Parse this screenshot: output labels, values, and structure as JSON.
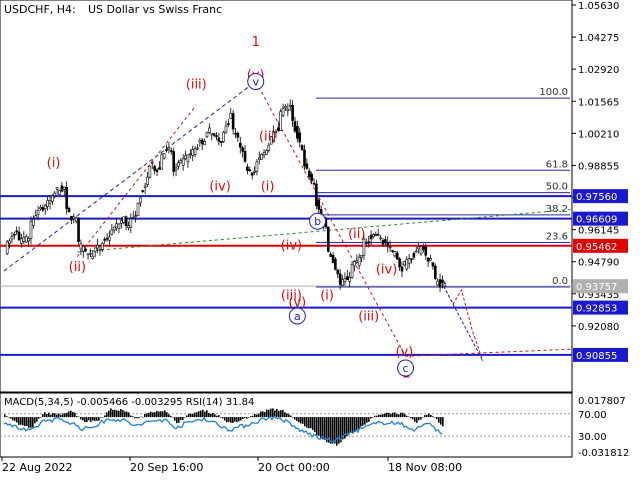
{
  "header": {
    "symbol": "USDCHF, H4:",
    "description": "US Dollar vs Swiss Franc"
  },
  "indicator_label": "MACD(5,34,5) -0.005466 -0.003295 RSI(14) 31.84",
  "colors": {
    "candle": "#000000",
    "level_blue": "#1a1acc",
    "level_red": "#e00000",
    "wave_red": "#d01010",
    "wave_blue": "#2020c0",
    "trend_green": "#2a8a2a",
    "fib_line": "#2a2aa0",
    "price_badge_blue": "#1a1acc",
    "price_badge_red": "#e00000",
    "current_badge": "#b0b0b0",
    "macd_hist": "#000000",
    "rsi_line": "#1e7fd6"
  },
  "chart_data": {
    "type": "candlestick",
    "y_range": [
      0.895,
      1.0563
    ],
    "y_ticks": [
      1.0563,
      1.04275,
      1.0292,
      1.01565,
      1.0021,
      0.98855,
      0.975,
      0.96145,
      0.9479,
      0.93435,
      0.9208
    ],
    "y_tick_labels": [
      "1.05630",
      "1.04275",
      "1.02920",
      "1.01565",
      "1.00210",
      "0.98855",
      "0.97500",
      "0.96145",
      "0.94790",
      "0.93435",
      "0.92080"
    ],
    "x_labels": [
      "22 Aug 2022",
      "20 Sep 16:00",
      "20 Oct 00:00",
      "18 Nov 08:00"
    ],
    "price_path": [
      [
        0.953,
        0.962
      ],
      [
        0.955,
        0.958
      ],
      [
        0.963,
        0.972
      ],
      [
        0.969,
        0.975
      ],
      [
        0.977,
        0.979
      ],
      [
        0.97,
        0.965
      ],
      [
        0.956,
        0.951
      ],
      [
        0.95,
        0.954
      ],
      [
        0.955,
        0.96
      ],
      [
        0.961,
        0.966
      ],
      [
        0.962,
        0.967
      ],
      [
        0.972,
        0.983
      ],
      [
        0.989,
        0.987
      ],
      [
        0.993,
        0.995
      ],
      [
        0.985,
        0.99
      ],
      [
        0.99,
        0.995
      ],
      [
        0.996,
        1.001
      ],
      [
        1.004,
        0.998
      ],
      [
        0.997,
        1.01
      ],
      [
        1.004,
        0.996
      ],
      [
        0.99,
        0.985
      ],
      [
        0.988,
        0.995
      ],
      [
        0.997,
        1.005
      ],
      [
        1.01,
        1.014
      ],
      [
        1.009,
        0.996
      ],
      [
        0.99,
        0.98
      ],
      [
        0.975,
        0.962
      ],
      [
        0.955,
        0.943
      ],
      [
        0.937,
        0.942
      ],
      [
        0.945,
        0.95
      ],
      [
        0.955,
        0.959
      ],
      [
        0.96,
        0.956
      ],
      [
        0.955,
        0.95
      ],
      [
        0.944,
        0.948
      ],
      [
        0.95,
        0.953
      ],
      [
        0.954,
        0.946
      ],
      [
        0.94,
        0.938
      ]
    ],
    "projection_path": [
      0.9376,
      0.93,
      0.936,
      0.919,
      0.906
    ],
    "levels": [
      {
        "price": 0.9756,
        "label": "0.97560",
        "style": "blue"
      },
      {
        "price": 0.96609,
        "label": "0.96609",
        "style": "blue"
      },
      {
        "price": 0.95462,
        "label": "0.95462",
        "style": "red"
      },
      {
        "price": 0.92853,
        "label": "0.92853",
        "style": "blue"
      },
      {
        "price": 0.90855,
        "label": "0.90855",
        "style": "blue"
      }
    ],
    "current_price": {
      "price": 0.93757,
      "label": "0.93757"
    },
    "fibonacci": {
      "high": 1.017,
      "low": 0.9372,
      "ratios": [
        {
          "ratio": 1.0,
          "label": "100.0"
        },
        {
          "ratio": 0.618,
          "label": "61.8"
        },
        {
          "ratio": 0.5,
          "label": "50.0"
        },
        {
          "ratio": 0.382,
          "label": "38.2"
        },
        {
          "ratio": 0.236,
          "label": "23.6"
        },
        {
          "ratio": 0.0,
          "label": "0.0"
        }
      ]
    },
    "wave_labels": [
      {
        "text": "(i)",
        "color": "red",
        "price": 0.988,
        "bar": 4
      },
      {
        "text": "(ii)",
        "color": "red",
        "price": 0.944,
        "bar": 6
      },
      {
        "text": "(iii)",
        "color": "red",
        "price": 1.021,
        "bar": 16
      },
      {
        "text": "(iv)",
        "color": "red",
        "price": 0.978,
        "bar": 18
      },
      {
        "text": "(v)",
        "color": "red",
        "price": 1.025,
        "bar": 21
      },
      {
        "text": "1",
        "color": "red",
        "price": 1.039,
        "bar": 21
      },
      {
        "text": "(ii)",
        "color": "red",
        "price": 0.999,
        "bar": 22
      },
      {
        "text": "(i)",
        "color": "red",
        "price": 0.978,
        "bar": 22
      },
      {
        "text": "(iv)",
        "color": "red",
        "price": 0.953,
        "bar": 24
      },
      {
        "text": "(iii)",
        "color": "red",
        "price": 0.932,
        "bar": 24
      },
      {
        "text": "(v)",
        "color": "red",
        "price": 0.929,
        "bar": 24.5
      },
      {
        "text": "(i)",
        "color": "red",
        "price": 0.932,
        "bar": 27
      },
      {
        "text": "(ii)",
        "color": "red",
        "price": 0.958,
        "bar": 29.5
      },
      {
        "text": "(iii)",
        "color": "red",
        "price": 0.923,
        "bar": 30.5
      },
      {
        "text": "(iv)",
        "color": "red",
        "price": 0.943,
        "bar": 32
      },
      {
        "text": "(v)",
        "color": "red",
        "price": 0.908,
        "bar": 33.5
      },
      {
        "text": "2",
        "color": "red",
        "price": 0.899,
        "bar": 33.7
      }
    ],
    "wave_circles": [
      {
        "text": "v",
        "price": 1.024,
        "bar": 21
      },
      {
        "text": "a",
        "price": 0.925,
        "bar": 24.5
      },
      {
        "text": "b",
        "price": 0.965,
        "bar": 26.2
      },
      {
        "text": "c",
        "price": 0.903,
        "bar": 33.6
      }
    ],
    "macd_range": [
      -0.031812,
      0.017807
    ],
    "macd_ticks": [
      {
        "value": 0.017807,
        "label": "0.017807"
      },
      {
        "value": -0.031812,
        "label": "-0.031812"
      }
    ],
    "rsi_ticks": [
      {
        "value": 70,
        "label": "70.00"
      },
      {
        "value": 30,
        "label": "30.00"
      }
    ],
    "macd_hist_profile": [
      0.003,
      -0.006,
      -0.01,
      0.004,
      0.002,
      0.006,
      -0.004,
      -0.003,
      0.007,
      0.006,
      -0.002,
      0.005,
      0.006,
      -0.005,
      0.003,
      0.006,
      0.002,
      -0.006,
      -0.002,
      0.003,
      0.007,
      0.006,
      -0.004,
      -0.01,
      -0.02,
      -0.025,
      -0.015,
      -0.008,
      0.002,
      0.004,
      0.003,
      -0.005,
      0.004,
      -0.008
    ],
    "rsi_profile": [
      55,
      45,
      38,
      58,
      60,
      55,
      42,
      50,
      62,
      58,
      48,
      56,
      60,
      46,
      55,
      62,
      52,
      42,
      48,
      56,
      64,
      60,
      44,
      34,
      25,
      22,
      35,
      44,
      52,
      56,
      50,
      42,
      55,
      32
    ]
  }
}
